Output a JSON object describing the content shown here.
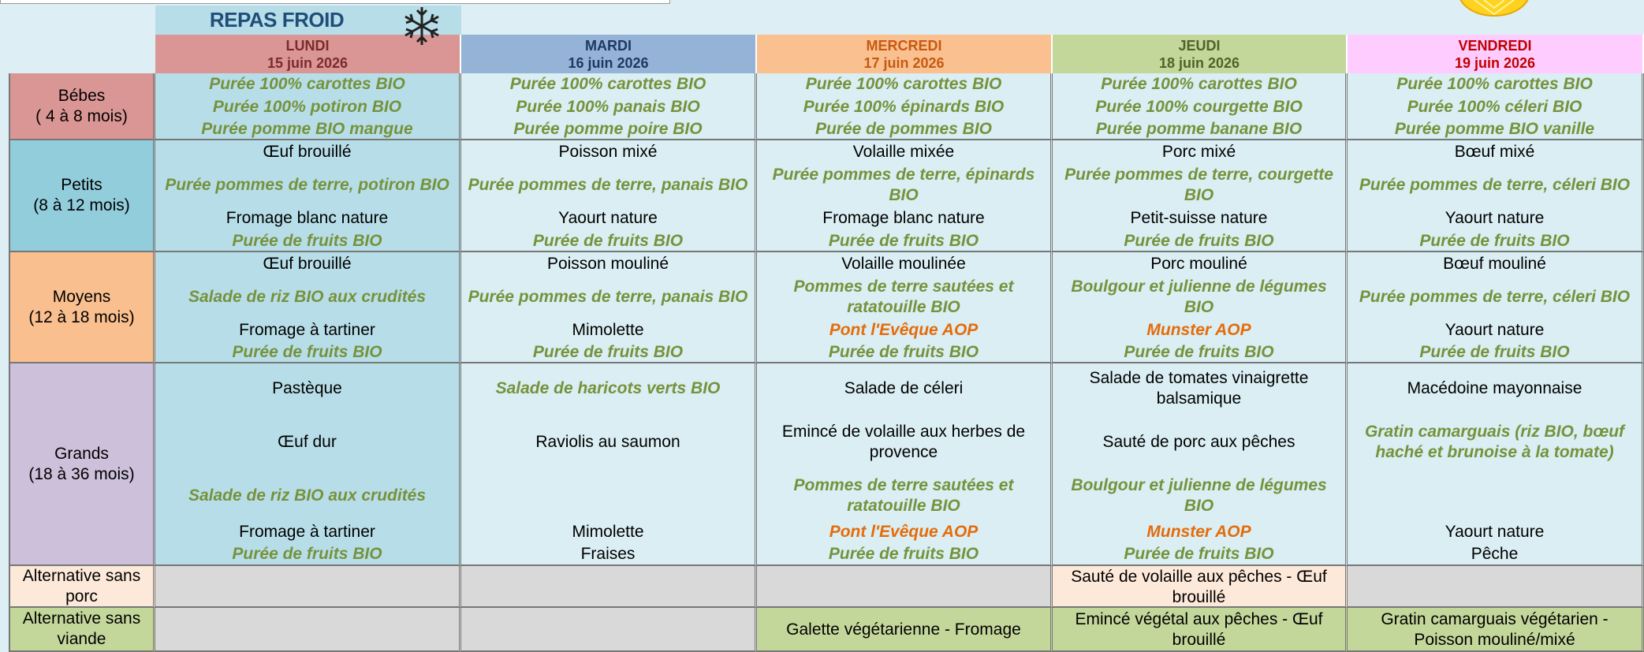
{
  "banner": "REPAS FROID",
  "days": [
    {
      "name": "LUNDI",
      "date": "15 juin 2026",
      "color": "#da9694",
      "text_color": "#7b2b2b"
    },
    {
      "name": "MARDI",
      "date": "16 juin 2026",
      "color": "#95b3d7",
      "text_color": "#1f3864"
    },
    {
      "name": "MERCREDI",
      "date": "17 juin 2026",
      "color": "#fac090",
      "text_color": "#c55a11"
    },
    {
      "name": "JEUDI",
      "date": "18 juin 2026",
      "color": "#c4d79b",
      "text_color": "#4f6228"
    },
    {
      "name": "VENDREDI",
      "date": "19 juin 2026",
      "color": "#ffccff",
      "text_color": "#c00000"
    }
  ],
  "rows": [
    {
      "label": [
        "Bébes",
        "( 4 à 8 mois)"
      ],
      "color": "#da9694",
      "cells": [
        [
          {
            "text": "Purée 100% carottes BIO",
            "style": "bio"
          },
          {
            "text": "Purée 100% potiron BIO",
            "style": "bio"
          },
          {
            "text": "Purée pomme BIO mangue",
            "style": "bio"
          }
        ],
        [
          {
            "text": "Purée 100% carottes BIO",
            "style": "bio"
          },
          {
            "text": "Purée 100% panais BIO",
            "style": "bio"
          },
          {
            "text": "Purée pomme poire BIO",
            "style": "bio"
          }
        ],
        [
          {
            "text": "Purée 100% carottes BIO",
            "style": "bio"
          },
          {
            "text": "Purée 100% épinards BIO",
            "style": "bio"
          },
          {
            "text": "Purée de pommes BIO",
            "style": "bio"
          }
        ],
        [
          {
            "text": "Purée 100% carottes BIO",
            "style": "bio"
          },
          {
            "text": "Purée 100% courgette BIO",
            "style": "bio"
          },
          {
            "text": "Purée pomme banane BIO",
            "style": "bio"
          }
        ],
        [
          {
            "text": "Purée 100% carottes BIO",
            "style": "bio"
          },
          {
            "text": "Purée 100% céleri BIO",
            "style": "bio"
          },
          {
            "text": "Purée pomme BIO vanille",
            "style": "bio"
          }
        ]
      ]
    },
    {
      "label": [
        "Petits",
        "(8 à 12 mois)"
      ],
      "color": "#92cddc",
      "cells": [
        [
          {
            "text": "Œuf brouillé",
            "style": "plain"
          },
          {
            "text": "Purée pommes de terre, potiron BIO",
            "style": "bio"
          },
          {
            "text": "Fromage blanc nature",
            "style": "plain"
          },
          {
            "text": "Purée de fruits BIO",
            "style": "bio"
          }
        ],
        [
          {
            "text": "Poisson mixé",
            "style": "plain"
          },
          {
            "text": "Purée pommes de terre, panais BIO",
            "style": "bio"
          },
          {
            "text": "Yaourt nature",
            "style": "plain"
          },
          {
            "text": "Purée de fruits BIO",
            "style": "bio"
          }
        ],
        [
          {
            "text": "Volaille mixée",
            "style": "plain"
          },
          {
            "text": "Purée pommes de terre, épinards BIO",
            "style": "bio"
          },
          {
            "text": "Fromage blanc nature",
            "style": "plain"
          },
          {
            "text": "Purée de fruits BIO",
            "style": "bio"
          }
        ],
        [
          {
            "text": "Porc mixé",
            "style": "plain"
          },
          {
            "text": "Purée pommes de terre, courgette BIO",
            "style": "bio"
          },
          {
            "text": "Petit-suisse nature",
            "style": "plain"
          },
          {
            "text": "Purée de fruits BIO",
            "style": "bio"
          }
        ],
        [
          {
            "text": "Bœuf mixé",
            "style": "plain"
          },
          {
            "text": "Purée pommes de terre, céleri BIO",
            "style": "bio"
          },
          {
            "text": "Yaourt nature",
            "style": "plain"
          },
          {
            "text": "Purée de fruits BIO",
            "style": "bio"
          }
        ]
      ]
    },
    {
      "label": [
        "Moyens",
        "(12 à 18 mois)"
      ],
      "color": "#fabf8f",
      "cells": [
        [
          {
            "text": "Œuf brouillé",
            "style": "plain"
          },
          {
            "text": "Salade de riz BIO aux crudités",
            "style": "bio"
          },
          {
            "text": "Fromage à tartiner",
            "style": "plain"
          },
          {
            "text": "Purée de fruits BIO",
            "style": "bio"
          }
        ],
        [
          {
            "text": "Poisson mouliné",
            "style": "plain"
          },
          {
            "text": "Purée pommes de terre, panais BIO",
            "style": "bio"
          },
          {
            "text": "Mimolette",
            "style": "plain"
          },
          {
            "text": "Purée de fruits BIO",
            "style": "bio"
          }
        ],
        [
          {
            "text": "Volaille moulinée",
            "style": "plain"
          },
          {
            "text": "Pommes de terre sautées et ratatouille BIO",
            "style": "bio"
          },
          {
            "text": "Pont l'Evêque AOP",
            "style": "aop"
          },
          {
            "text": "Purée de fruits BIO",
            "style": "bio"
          }
        ],
        [
          {
            "text": "Porc mouliné",
            "style": "plain"
          },
          {
            "text": "Boulgour et julienne de légumes BIO",
            "style": "bio"
          },
          {
            "text": "Munster AOP",
            "style": "aop"
          },
          {
            "text": "Purée de fruits BIO",
            "style": "bio"
          }
        ],
        [
          {
            "text": "Bœuf mouliné",
            "style": "plain"
          },
          {
            "text": "Purée pommes de terre, céleri BIO",
            "style": "bio"
          },
          {
            "text": "Yaourt nature",
            "style": "plain"
          },
          {
            "text": "Purée de fruits BIO",
            "style": "bio"
          }
        ]
      ]
    },
    {
      "label": [
        "Grands",
        "(18 à 36 mois)"
      ],
      "color": "#ccc0da",
      "cells": [
        [
          {
            "text": "Pastèque",
            "style": "plain"
          },
          {
            "text": "Œuf dur",
            "style": "plain"
          },
          {
            "text": "Salade de riz BIO aux crudités",
            "style": "bio"
          },
          {
            "text": "Fromage à tartiner",
            "style": "plain"
          },
          {
            "text": "Purée de fruits BIO",
            "style": "bio"
          }
        ],
        [
          {
            "text": "Salade de haricots verts BIO",
            "style": "bio"
          },
          {
            "text": "Raviolis au saumon",
            "style": "plain"
          },
          null,
          {
            "text": "Mimolette",
            "style": "plain"
          },
          {
            "text": "Fraises",
            "style": "plain"
          }
        ],
        [
          {
            "text": "Salade de céleri",
            "style": "plain"
          },
          {
            "text": "Emincé de volaille aux herbes de provence",
            "style": "plain"
          },
          {
            "text": "Pommes de terre sautées et ratatouille BIO",
            "style": "bio"
          },
          {
            "text": "Pont l'Evêque AOP",
            "style": "aop"
          },
          {
            "text": "Purée de fruits BIO",
            "style": "bio"
          }
        ],
        [
          {
            "text": "Salade de tomates vinaigrette balsamique",
            "style": "plain"
          },
          {
            "text": "Sauté de porc aux pêches",
            "style": "plain"
          },
          {
            "text": "Boulgour et julienne de légumes BIO",
            "style": "bio"
          },
          {
            "text": "Munster AOP",
            "style": "aop"
          },
          {
            "text": "Purée de fruits BIO",
            "style": "bio"
          }
        ],
        [
          {
            "text": "Macédoine mayonnaise",
            "style": "plain"
          },
          {
            "text": "Gratin camarguais (riz BIO, bœuf haché et brunoise à la tomate)",
            "style": "bio"
          },
          null,
          {
            "text": "Yaourt nature",
            "style": "plain"
          },
          {
            "text": "Pêche",
            "style": "plain"
          }
        ]
      ]
    },
    {
      "label": [
        "Alternative sans porc"
      ],
      "color": "#fde9d9",
      "cells": [
        [
          null
        ],
        [
          null
        ],
        [
          null
        ],
        [
          {
            "text": "Sauté de volaille aux pêches - Œuf brouillé",
            "style": "plain"
          }
        ],
        [
          null
        ]
      ]
    },
    {
      "label": [
        "Alternative sans viande"
      ],
      "color": "#c4d79b",
      "cells": [
        [
          null
        ],
        [
          null
        ],
        [
          {
            "text": "Galette végétarienne - Fromage",
            "style": "plain"
          }
        ],
        [
          {
            "text": "Emincé végétal aux pêches - Œuf brouillé",
            "style": "plain"
          }
        ],
        [
          {
            "text": "Gratin camarguais végétarien - Poisson mouliné/mixé",
            "style": "plain"
          }
        ]
      ]
    }
  ]
}
